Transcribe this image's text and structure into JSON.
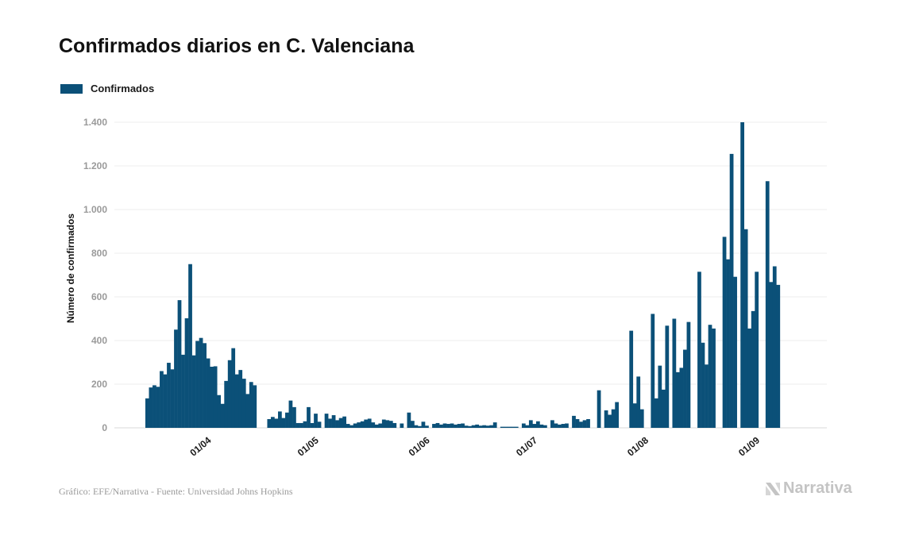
{
  "title": "Confirmados diarios en C. Valenciana",
  "legend": {
    "label": "Confirmados",
    "color": "#0b5078"
  },
  "source": "Gráfico: EFE/Narrativa - Fuente: Universidad Johns Hopkins",
  "brand": "Narrativa",
  "chart_data": {
    "type": "bar",
    "ylabel": "Número de confirmados",
    "ylim": [
      0,
      1400
    ],
    "yticks": [
      0,
      200,
      400,
      600,
      800,
      1000,
      1200,
      1400
    ],
    "ytick_labels": [
      "0",
      "200",
      "400",
      "600",
      "800",
      "1.000",
      "1.200",
      "1.400"
    ],
    "xticks": [
      {
        "label": "01/04",
        "index": 18
      },
      {
        "label": "01/05",
        "index": 48
      },
      {
        "label": "01/06",
        "index": 79
      },
      {
        "label": "01/07",
        "index": 109
      },
      {
        "label": "01/08",
        "index": 140
      },
      {
        "label": "01/09",
        "index": 171
      }
    ],
    "grid": true,
    "legend_position": "top-left",
    "series": [
      {
        "name": "Confirmados",
        "color": "#0b5078",
        "start_date": "2020-03-14",
        "values": [
          135,
          185,
          195,
          188,
          260,
          245,
          298,
          268,
          450,
          585,
          335,
          502,
          750,
          332,
          398,
          412,
          388,
          318,
          280,
          282,
          150,
          110,
          215,
          310,
          365,
          245,
          265,
          225,
          155,
          210,
          195,
          0,
          0,
          0,
          40,
          50,
          42,
          75,
          45,
          70,
          125,
          95,
          22,
          22,
          30,
          95,
          22,
          65,
          28,
          0,
          65,
          42,
          58,
          35,
          45,
          52,
          18,
          12,
          20,
          25,
          30,
          38,
          42,
          25,
          15,
          20,
          38,
          35,
          32,
          22,
          0,
          20,
          0,
          70,
          32,
          12,
          8,
          28,
          10,
          0,
          18,
          22,
          15,
          20,
          18,
          20,
          15,
          18,
          20,
          10,
          8,
          12,
          15,
          10,
          12,
          10,
          12,
          25,
          0,
          5,
          5,
          5,
          5,
          5,
          0,
          20,
          12,
          35,
          18,
          30,
          15,
          12,
          0,
          35,
          20,
          15,
          18,
          20,
          0,
          55,
          40,
          28,
          35,
          40,
          0,
          0,
          172,
          0,
          80,
          60,
          85,
          118,
          0,
          0,
          0,
          445,
          112,
          235,
          85,
          0,
          0,
          522,
          135,
          285,
          175,
          468,
          0,
          500,
          255,
          275,
          358,
          485,
          0,
          0,
          715,
          390,
          290,
          472,
          455,
          0,
          0,
          875,
          772,
          1255,
          692,
          0,
          1400,
          910,
          455,
          535,
          715,
          0,
          0,
          1130,
          668,
          740,
          655
        ]
      }
    ]
  }
}
